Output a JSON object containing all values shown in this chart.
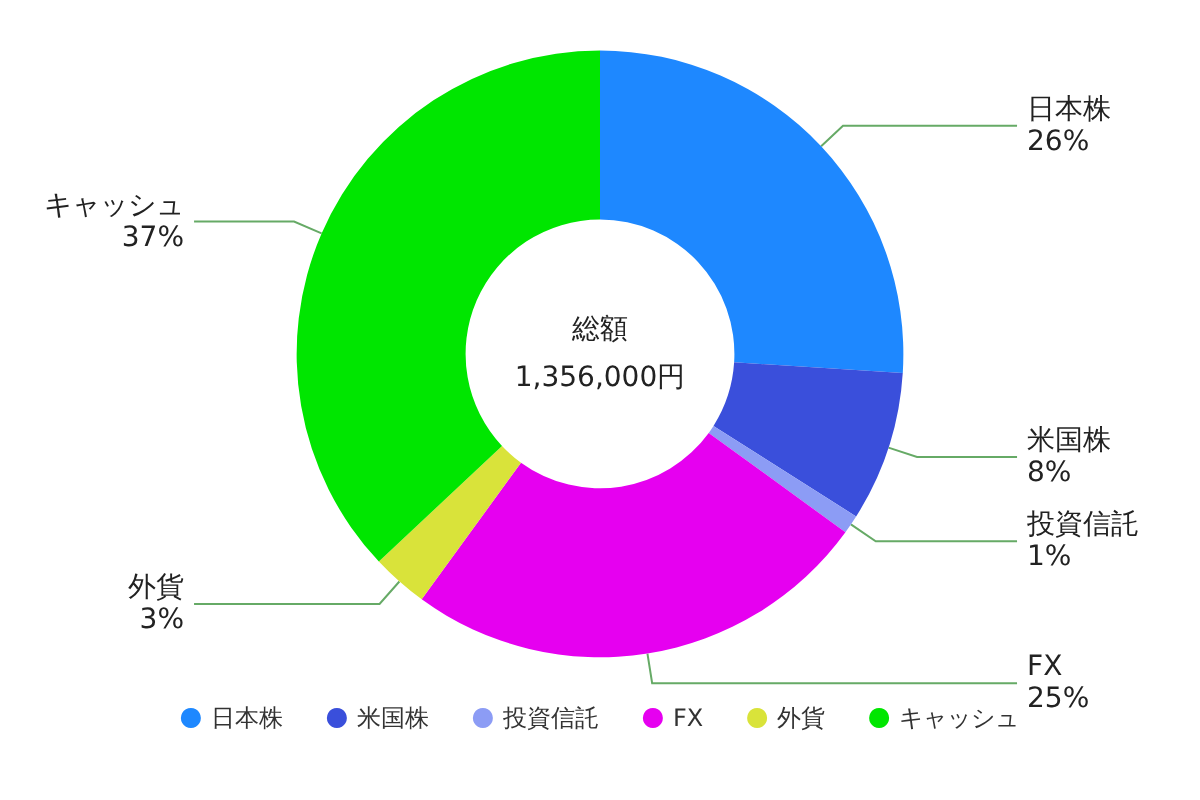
{
  "chart_data": {
    "type": "donut",
    "categories": [
      "日本株",
      "米国株",
      "投資信託",
      "FX",
      "外貨",
      "キャッシュ"
    ],
    "values": [
      26,
      8,
      1,
      25,
      3,
      37
    ],
    "colors": [
      "#1e88ff",
      "#3a4fdb",
      "#8c9cf5",
      "#e600f0",
      "#d9e33a",
      "#00e600"
    ],
    "annotations": [
      "総額",
      "1,356,000円"
    ],
    "value_labels": [
      "26%",
      "8%",
      "1%",
      "25%",
      "3%",
      "37%"
    ],
    "legend": "bottom"
  }
}
